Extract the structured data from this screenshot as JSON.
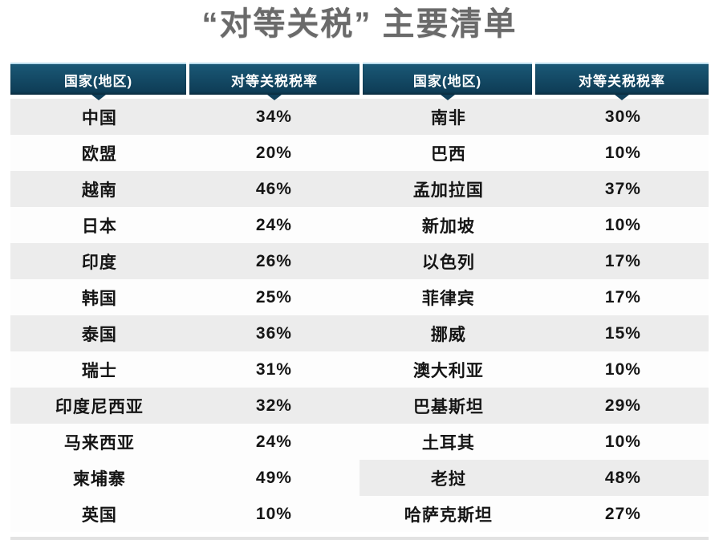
{
  "chart_data": {
    "type": "table",
    "title": "“对等关税” 主要清单",
    "columns": [
      "国家(地区)",
      "对等关税税率",
      "国家(地区)",
      "对等关税税率"
    ],
    "rows": [
      [
        "中国",
        "34%",
        "南非",
        "30%"
      ],
      [
        "欧盟",
        "20%",
        "巴西",
        "10%"
      ],
      [
        "越南",
        "46%",
        "孟加拉国",
        "37%"
      ],
      [
        "日本",
        "24%",
        "新加坡",
        "10%"
      ],
      [
        "印度",
        "26%",
        "以色列",
        "17%"
      ],
      [
        "韩国",
        "25%",
        "菲律宾",
        "17%"
      ],
      [
        "泰国",
        "36%",
        "挪威",
        "15%"
      ],
      [
        "瑞士",
        "31%",
        "澳大利亚",
        "10%"
      ],
      [
        "印度尼西亚",
        "32%",
        "巴基斯坦",
        "29%"
      ],
      [
        "马来西亚",
        "24%",
        "土耳其",
        "10%"
      ],
      [
        "柬埔寨",
        "49%",
        "老挝",
        "48%"
      ],
      [
        "英国",
        "10%",
        "哈萨克斯坦",
        "27%"
      ]
    ],
    "row_shading": [
      [
        true,
        true
      ],
      [
        false,
        false
      ],
      [
        true,
        true
      ],
      [
        false,
        false
      ],
      [
        true,
        true
      ],
      [
        false,
        false
      ],
      [
        true,
        true
      ],
      [
        false,
        false
      ],
      [
        true,
        true
      ],
      [
        false,
        false
      ],
      [
        false,
        true
      ],
      [
        false,
        false
      ]
    ],
    "legend_position": "none",
    "grid": false
  },
  "colors": {
    "page_bg": "#ffffff",
    "header_bg_top": "#1a5876",
    "header_bg_bottom": "#0d3a53",
    "header_top_edge": "#b9dcec",
    "header_text": "#ffffff",
    "notch": "#11405a",
    "stripe": "#ececec",
    "row_white": "#fdfdfd",
    "row_text": "#151515",
    "title_text": "#6a6a6a",
    "bottom_peek": "#e2e2e2"
  }
}
